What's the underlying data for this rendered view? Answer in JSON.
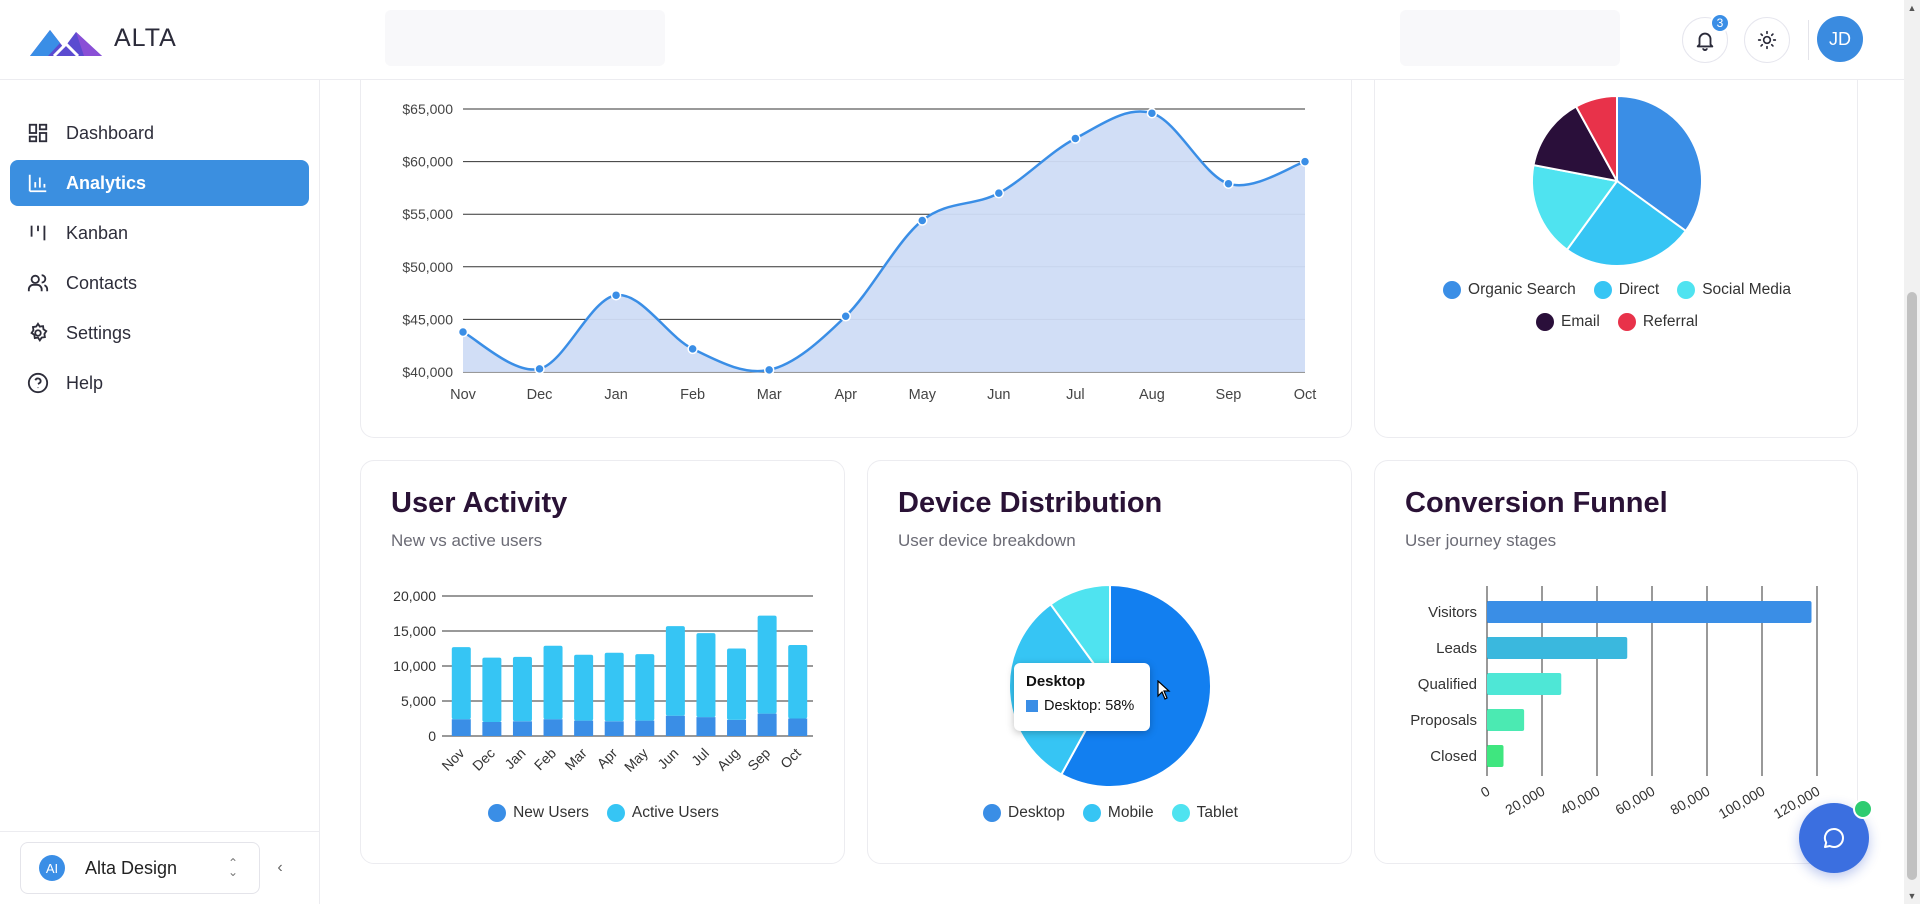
{
  "app": {
    "brand": "ALTA"
  },
  "topbar": {
    "notifications_count": "3",
    "user_initials": "JD"
  },
  "sidebar": {
    "items": [
      {
        "label": "Dashboard",
        "icon": "dashboard-icon",
        "active": false
      },
      {
        "label": "Analytics",
        "icon": "analytics-icon",
        "active": true
      },
      {
        "label": "Kanban",
        "icon": "kanban-icon",
        "active": false
      },
      {
        "label": "Contacts",
        "icon": "contacts-icon",
        "active": false
      },
      {
        "label": "Settings",
        "icon": "settings-icon",
        "active": false
      },
      {
        "label": "Help",
        "icon": "help-icon",
        "active": false
      }
    ],
    "workspace": {
      "logo": "AI",
      "name": "Alta Design"
    }
  },
  "colors": {
    "accent": "#3b8fe0",
    "title": "#2a1236",
    "blue": "#3a8ee6",
    "sky": "#36c5f4",
    "cyan": "#4fe3f0",
    "dark": "#2a0f3a",
    "red": "#e8324a"
  },
  "revenue_chart": {
    "chart_data": {
      "type": "area",
      "categories": [
        "Nov",
        "Dec",
        "Jan",
        "Feb",
        "Mar",
        "Apr",
        "May",
        "Jun",
        "Jul",
        "Aug",
        "Sep",
        "Oct"
      ],
      "values": [
        43800,
        40300,
        47300,
        42200,
        40200,
        45300,
        54400,
        57000,
        62200,
        64600,
        57900,
        60000
      ],
      "y_ticks": [
        "$40,000",
        "$45,000",
        "$50,000",
        "$55,000",
        "$60,000",
        "$65,000"
      ],
      "ylim": [
        40000,
        65000
      ]
    }
  },
  "traffic_sources": {
    "chart_data": {
      "type": "pie",
      "labels": [
        "Organic Search",
        "Direct",
        "Social Media",
        "Email",
        "Referral"
      ],
      "values": [
        35,
        25,
        18,
        14,
        8
      ]
    },
    "legend": [
      "Organic Search",
      "Direct",
      "Social Media",
      "Email",
      "Referral"
    ]
  },
  "user_activity": {
    "title": "User Activity",
    "subtitle": "New vs active users",
    "chart_data": {
      "type": "bar",
      "stacked": true,
      "categories": [
        "Nov",
        "Dec",
        "Jan",
        "Feb",
        "Mar",
        "Apr",
        "May",
        "Jun",
        "Jul",
        "Aug",
        "Sep",
        "Oct"
      ],
      "series": [
        {
          "name": "New Users",
          "values": [
            2400,
            2000,
            2100,
            2400,
            2200,
            2100,
            2200,
            2900,
            2700,
            2300,
            3200,
            2500
          ]
        },
        {
          "name": "Active Users",
          "values": [
            10300,
            9200,
            9200,
            10500,
            9400,
            9800,
            9500,
            12800,
            12000,
            10200,
            14000,
            10500
          ]
        }
      ],
      "y_ticks": [
        "0",
        "5,000",
        "10,000",
        "15,000",
        "20,000"
      ],
      "ylim": [
        0,
        20000
      ]
    },
    "legend": [
      "New Users",
      "Active Users"
    ]
  },
  "device_distribution": {
    "title": "Device Distribution",
    "subtitle": "User device breakdown",
    "chart_data": {
      "type": "pie",
      "labels": [
        "Desktop",
        "Mobile",
        "Tablet"
      ],
      "values": [
        58,
        32,
        10
      ]
    },
    "legend": [
      "Desktop",
      "Mobile",
      "Tablet"
    ],
    "tooltip": {
      "title": "Desktop",
      "value": "Desktop: 58%"
    }
  },
  "conversion_funnel": {
    "title": "Conversion Funnel",
    "subtitle": "User journey stages",
    "chart_data": {
      "type": "bar",
      "orientation": "horizontal",
      "categories": [
        "Visitors",
        "Leads",
        "Qualified",
        "Proposals",
        "Closed"
      ],
      "values": [
        118000,
        51000,
        27000,
        13500,
        6000
      ],
      "x_ticks": [
        "0",
        "20,000",
        "40,000",
        "60,000",
        "80,000",
        "100,000",
        "120,000"
      ],
      "xlim": [
        0,
        120000
      ]
    }
  }
}
